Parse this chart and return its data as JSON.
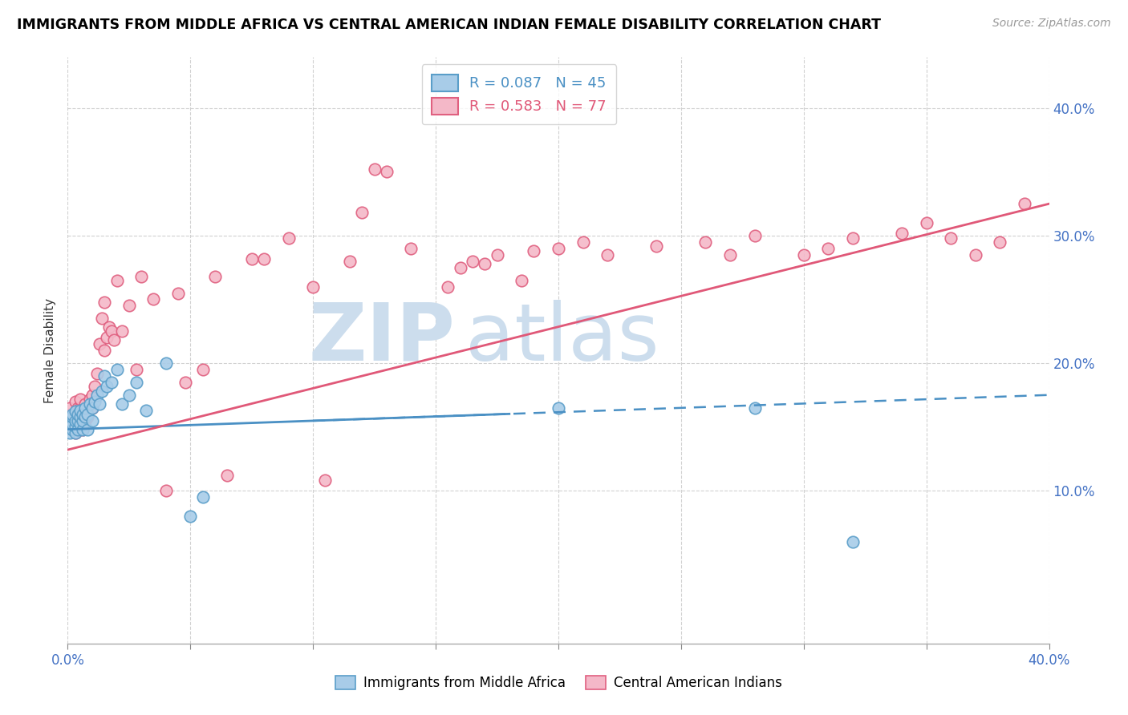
{
  "title": "IMMIGRANTS FROM MIDDLE AFRICA VS CENTRAL AMERICAN INDIAN FEMALE DISABILITY CORRELATION CHART",
  "source": "Source: ZipAtlas.com",
  "ylabel": "Female Disability",
  "ytick_labels": [
    "10.0%",
    "20.0%",
    "30.0%",
    "40.0%"
  ],
  "ytick_positions": [
    0.1,
    0.2,
    0.3,
    0.4
  ],
  "xlim": [
    0.0,
    0.4
  ],
  "ylim": [
    -0.02,
    0.44
  ],
  "legend_r1": "0.087",
  "legend_n1": "45",
  "legend_r2": "0.583",
  "legend_n2": "77",
  "color_blue_face": "#a8cce8",
  "color_blue_edge": "#5a9ec9",
  "color_pink_face": "#f4b8c8",
  "color_pink_edge": "#e06080",
  "color_trendline_blue": "#4a90c4",
  "color_trendline_pink": "#e05878",
  "watermark_zip": "ZIP",
  "watermark_atlas": "atlas",
  "watermark_color": "#ccdded",
  "blue_scatter_x": [
    0.001,
    0.001,
    0.001,
    0.002,
    0.002,
    0.002,
    0.002,
    0.003,
    0.003,
    0.003,
    0.003,
    0.004,
    0.004,
    0.004,
    0.005,
    0.005,
    0.005,
    0.006,
    0.006,
    0.006,
    0.007,
    0.007,
    0.008,
    0.008,
    0.009,
    0.01,
    0.01,
    0.011,
    0.012,
    0.013,
    0.014,
    0.015,
    0.016,
    0.018,
    0.02,
    0.022,
    0.025,
    0.028,
    0.032,
    0.04,
    0.05,
    0.055,
    0.2,
    0.28,
    0.32
  ],
  "blue_scatter_y": [
    0.145,
    0.15,
    0.155,
    0.148,
    0.152,
    0.158,
    0.16,
    0.145,
    0.15,
    0.155,
    0.162,
    0.148,
    0.155,
    0.16,
    0.152,
    0.158,
    0.163,
    0.148,
    0.155,
    0.16,
    0.158,
    0.165,
    0.148,
    0.16,
    0.168,
    0.155,
    0.165,
    0.17,
    0.175,
    0.168,
    0.178,
    0.19,
    0.182,
    0.185,
    0.195,
    0.168,
    0.175,
    0.185,
    0.163,
    0.2,
    0.08,
    0.095,
    0.165,
    0.165,
    0.06
  ],
  "pink_scatter_x": [
    0.001,
    0.001,
    0.002,
    0.002,
    0.003,
    0.003,
    0.003,
    0.004,
    0.004,
    0.005,
    0.005,
    0.005,
    0.006,
    0.006,
    0.007,
    0.007,
    0.007,
    0.008,
    0.008,
    0.009,
    0.01,
    0.01,
    0.011,
    0.012,
    0.013,
    0.014,
    0.015,
    0.015,
    0.016,
    0.017,
    0.018,
    0.019,
    0.02,
    0.022,
    0.025,
    0.028,
    0.03,
    0.035,
    0.04,
    0.045,
    0.048,
    0.055,
    0.06,
    0.065,
    0.075,
    0.08,
    0.09,
    0.1,
    0.105,
    0.115,
    0.12,
    0.125,
    0.13,
    0.14,
    0.155,
    0.16,
    0.165,
    0.17,
    0.175,
    0.185,
    0.19,
    0.2,
    0.21,
    0.22,
    0.24,
    0.26,
    0.27,
    0.28,
    0.3,
    0.31,
    0.32,
    0.34,
    0.35,
    0.36,
    0.37,
    0.38,
    0.39
  ],
  "pink_scatter_y": [
    0.16,
    0.165,
    0.148,
    0.155,
    0.145,
    0.152,
    0.17,
    0.158,
    0.165,
    0.155,
    0.165,
    0.172,
    0.148,
    0.16,
    0.155,
    0.162,
    0.168,
    0.158,
    0.165,
    0.172,
    0.165,
    0.175,
    0.182,
    0.192,
    0.215,
    0.235,
    0.248,
    0.21,
    0.22,
    0.228,
    0.225,
    0.218,
    0.265,
    0.225,
    0.245,
    0.195,
    0.268,
    0.25,
    0.1,
    0.255,
    0.185,
    0.195,
    0.268,
    0.112,
    0.282,
    0.282,
    0.298,
    0.26,
    0.108,
    0.28,
    0.318,
    0.352,
    0.35,
    0.29,
    0.26,
    0.275,
    0.28,
    0.278,
    0.285,
    0.265,
    0.288,
    0.29,
    0.295,
    0.285,
    0.292,
    0.295,
    0.285,
    0.3,
    0.285,
    0.29,
    0.298,
    0.302,
    0.31,
    0.298,
    0.285,
    0.295,
    0.325
  ]
}
